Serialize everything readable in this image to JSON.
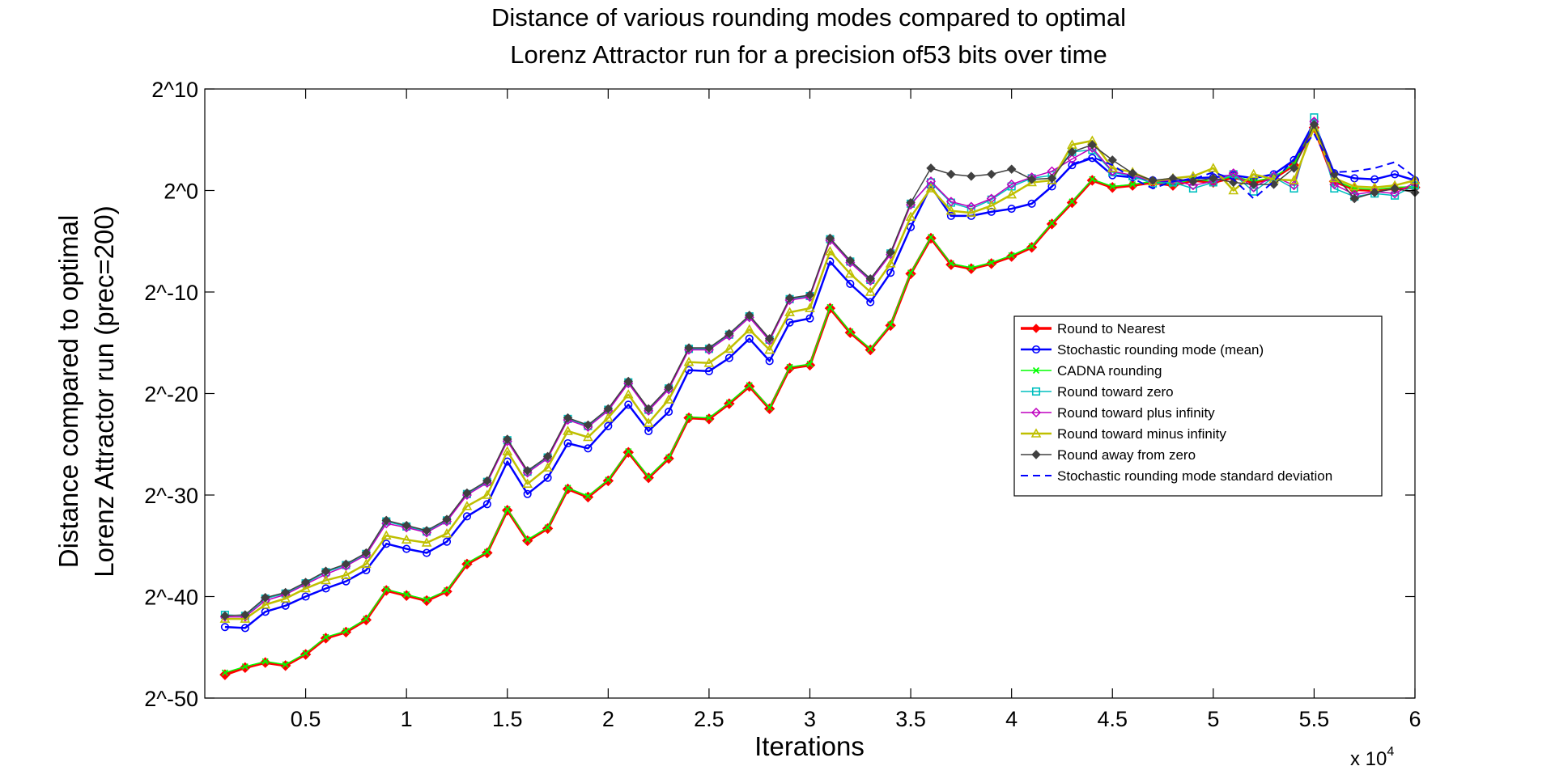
{
  "chart_data": {
    "type": "line",
    "title": [
      "Distance of various rounding modes compared to optimal",
      "Lorenz Attractor run for a precision of53 bits over time"
    ],
    "xlabel": "Iterations",
    "ylabel": [
      "Distance compared to optimal",
      "Lorenz Attractor run (prec=200)"
    ],
    "x_multiplier": {
      "base": "x 10",
      "exponent": "4"
    },
    "xlim": [
      0,
      60000
    ],
    "ylim": [
      -50,
      10
    ],
    "x_ticks": [
      5000,
      10000,
      15000,
      20000,
      25000,
      30000,
      35000,
      40000,
      45000,
      50000,
      55000,
      60000
    ],
    "x_tick_labels": [
      "0.5",
      "1",
      "1.5",
      "2",
      "2.5",
      "3",
      "3.5",
      "4",
      "4.5",
      "5",
      "5.5",
      "6"
    ],
    "y_ticks": [
      -50,
      -40,
      -30,
      -20,
      -10,
      0,
      10
    ],
    "y_tick_labels": [
      "2^-50",
      "2^-40",
      "2^-30",
      "2^-20",
      "2^-10",
      "2^0",
      "2^10"
    ],
    "y_scale": "log2 (exponent shown)",
    "grid": false,
    "legend_position": "right",
    "x": [
      1000,
      2000,
      3000,
      4000,
      5000,
      6000,
      7000,
      8000,
      9000,
      10000,
      11000,
      12000,
      13000,
      14000,
      15000,
      16000,
      17000,
      18000,
      19000,
      20000,
      21000,
      22000,
      23000,
      24000,
      25000,
      26000,
      27000,
      28000,
      29000,
      30000,
      31000,
      32000,
      33000,
      34000,
      35000,
      36000,
      37000,
      38000,
      39000,
      40000,
      41000,
      42000,
      43000,
      44000,
      45000,
      46000,
      47000,
      48000,
      49000,
      50000,
      51000,
      52000,
      53000,
      54000,
      55000,
      56000,
      57000,
      58000,
      59000,
      60000
    ],
    "series": [
      {
        "name": "Round to Nearest",
        "color": "#ff0000",
        "style": "solid",
        "marker": "diamond-filled",
        "width": 3.5,
        "values": [
          -47.7,
          -47,
          -46.5,
          -46.8,
          -45.7,
          -44.1,
          -43.5,
          -42.3,
          -39.4,
          -39.9,
          -40.4,
          -39.5,
          -36.8,
          -35.7,
          -31.5,
          -34.5,
          -33.3,
          -29.4,
          -30.2,
          -28.6,
          -25.8,
          -28.3,
          -26.4,
          -22.4,
          -22.5,
          -21,
          -19.3,
          -21.5,
          -17.5,
          -17.2,
          -11.6,
          -14,
          -15.7,
          -13.3,
          -8.2,
          -4.7,
          -7.3,
          -7.7,
          -7.2,
          -6.5,
          -5.6,
          -3.3,
          -1.2,
          1,
          0.3,
          0.5,
          0.8,
          0.5,
          1,
          0.8,
          1.3,
          0.8,
          1.2,
          2.5,
          6.2,
          0.9,
          0.1,
          0,
          0.2,
          0.3
        ]
      },
      {
        "name": "Stochastic rounding mode (mean)",
        "color": "#0000ff",
        "style": "solid",
        "marker": "circle",
        "width": 2.5,
        "values": [
          -43,
          -43.1,
          -41.5,
          -40.9,
          -40,
          -39.2,
          -38.5,
          -37.4,
          -34.8,
          -35.3,
          -35.7,
          -34.6,
          -32.1,
          -30.9,
          -26.7,
          -29.9,
          -28.3,
          -24.9,
          -25.4,
          -23.2,
          -21.1,
          -23.7,
          -21.8,
          -17.7,
          -17.8,
          -16.5,
          -14.6,
          -16.8,
          -13,
          -12.6,
          -7,
          -9.2,
          -11,
          -8.1,
          -3.6,
          0.4,
          -2.5,
          -2.5,
          -2.1,
          -1.8,
          -1.3,
          0.4,
          2.5,
          3.2,
          1.5,
          1.3,
          1,
          0.8,
          1.2,
          1.3,
          1.5,
          1.2,
          1.6,
          3,
          6.7,
          1.7,
          1.2,
          1.1,
          1.6,
          1
        ]
      },
      {
        "name": "CADNA rounding",
        "color": "#00ff00",
        "style": "solid",
        "marker": "x",
        "width": 1.5,
        "values": [
          -47.5,
          -46.9,
          -46.4,
          -46.7,
          -45.6,
          -44,
          -43.4,
          -42.2,
          -39.3,
          -39.8,
          -40.3,
          -39.4,
          -36.7,
          -35.6,
          -31.4,
          -34.4,
          -33.2,
          -29.3,
          -30.1,
          -28.5,
          -25.7,
          -28.2,
          -26.3,
          -22.3,
          -22.4,
          -20.9,
          -19.2,
          -21.4,
          -17.4,
          -17.1,
          -11.5,
          -13.9,
          -15.6,
          -13.2,
          -8.1,
          -4.6,
          -7.2,
          -7.6,
          -7.1,
          -6.4,
          -5.5,
          -3.2,
          -1.1,
          1.1,
          0.4,
          0.6,
          0.9,
          0.6,
          1.1,
          0.9,
          1.4,
          0.9,
          1.3,
          2.6,
          6.3,
          1,
          0.2,
          0.1,
          0.3,
          0.4
        ]
      },
      {
        "name": "Round toward zero",
        "color": "#00bfbf",
        "style": "solid",
        "marker": "square",
        "width": 1.5,
        "values": [
          -41.8,
          -41.9,
          -40.2,
          -39.7,
          -38.7,
          -37.6,
          -36.9,
          -35.8,
          -32.6,
          -33.1,
          -33.6,
          -32.5,
          -29.9,
          -28.7,
          -24.6,
          -27.7,
          -26.3,
          -22.5,
          -23.2,
          -21.6,
          -18.9,
          -21.6,
          -19.5,
          -15.6,
          -15.6,
          -14.2,
          -12.4,
          -14.7,
          -10.7,
          -10.4,
          -4.8,
          -7,
          -8.8,
          -6.2,
          -1.3,
          0.8,
          -1.2,
          -1.8,
          -0.9,
          0.4,
          1.2,
          1.5,
          3.8,
          4,
          1.8,
          1.4,
          0.7,
          0.8,
          0.2,
          0.8,
          1.6,
          -0.1,
          1.3,
          0.2,
          7.2,
          0.2,
          -0.6,
          -0.3,
          -0.5,
          0.5
        ]
      },
      {
        "name": "Round toward plus infinity",
        "color": "#bf00bf",
        "style": "solid",
        "marker": "diamond",
        "width": 1.5,
        "values": [
          -42,
          -42,
          -40.4,
          -39.8,
          -38.8,
          -37.8,
          -37,
          -35.9,
          -32.8,
          -33.2,
          -33.7,
          -32.6,
          -30,
          -28.8,
          -24.7,
          -27.8,
          -26.4,
          -22.6,
          -23.3,
          -21.7,
          -19,
          -21.7,
          -19.6,
          -15.7,
          -15.7,
          -14.3,
          -12.5,
          -14.8,
          -10.8,
          -10.5,
          -4.9,
          -7.1,
          -8.9,
          -6.3,
          -1.4,
          0.9,
          -1.1,
          -1.6,
          -0.8,
          0.6,
          1.3,
          1.9,
          3.1,
          4.2,
          1.9,
          1.5,
          0.9,
          1,
          0.5,
          0.9,
          1.7,
          0.3,
          1.4,
          0.5,
          6.8,
          0.6,
          -0.4,
          -0.1,
          -0.3,
          0.8
        ]
      },
      {
        "name": "Round toward minus infinity",
        "color": "#bfbf00",
        "style": "solid",
        "marker": "triangle",
        "width": 2.5,
        "values": [
          -42.2,
          -42.2,
          -40.8,
          -40.2,
          -39.2,
          -38.4,
          -37.9,
          -36.8,
          -34,
          -34.4,
          -34.7,
          -33.8,
          -31.1,
          -30,
          -25.7,
          -28.9,
          -27.3,
          -23.7,
          -24.3,
          -22.4,
          -20.1,
          -22.9,
          -20.6,
          -16.9,
          -17,
          -15.6,
          -13.7,
          -15.7,
          -12,
          -11.6,
          -6,
          -8.2,
          -10,
          -7.2,
          -2.6,
          0.2,
          -2,
          -2.2,
          -1.5,
          -0.4,
          0.8,
          1,
          4.5,
          4.9,
          2.2,
          1.8,
          0.9,
          1.2,
          1.4,
          2.2,
          0,
          1.6,
          1.1,
          1,
          6.2,
          1.2,
          0.4,
          0.3,
          0.5,
          1
        ]
      },
      {
        "name": "Round away from zero",
        "color": "#404040",
        "style": "solid",
        "marker": "diamond-filled",
        "width": 1.5,
        "values": [
          -41.9,
          -41.8,
          -40.1,
          -39.6,
          -38.6,
          -37.5,
          -36.8,
          -35.7,
          -32.5,
          -33,
          -33.5,
          -32.4,
          -29.8,
          -28.6,
          -24.5,
          -27.6,
          -26.2,
          -22.4,
          -23.1,
          -21.5,
          -18.8,
          -21.5,
          -19.4,
          -15.5,
          -15.5,
          -14.1,
          -12.3,
          -14.6,
          -10.6,
          -10.3,
          -4.7,
          -6.9,
          -8.7,
          -6.1,
          -1.2,
          2.2,
          1.6,
          1.4,
          1.6,
          2.1,
          1.1,
          1.2,
          3.8,
          4.5,
          3,
          1.7,
          1,
          1.2,
          0.9,
          1.2,
          0.8,
          0.6,
          0.6,
          2.2,
          6.5,
          1.6,
          -0.8,
          -0.2,
          0.2,
          -0.2
        ]
      },
      {
        "name": "Stochastic rounding mode standard deviation",
        "color": "#0000ff",
        "style": "dashed",
        "marker": "none",
        "width": 2,
        "values": [
          null,
          null,
          null,
          null,
          null,
          null,
          null,
          null,
          null,
          null,
          null,
          null,
          null,
          null,
          null,
          null,
          null,
          null,
          null,
          null,
          null,
          null,
          null,
          null,
          null,
          null,
          null,
          null,
          null,
          null,
          null,
          null,
          null,
          null,
          null,
          null,
          null,
          null,
          null,
          null,
          null,
          null,
          2.6,
          3.3,
          2.5,
          1.2,
          0.2,
          0.9,
          1.1,
          1.8,
          1.1,
          -0.8,
          0.9,
          3.1,
          5.6,
          1.8,
          1.9,
          2.2,
          2.8,
          1.3
        ]
      }
    ]
  }
}
